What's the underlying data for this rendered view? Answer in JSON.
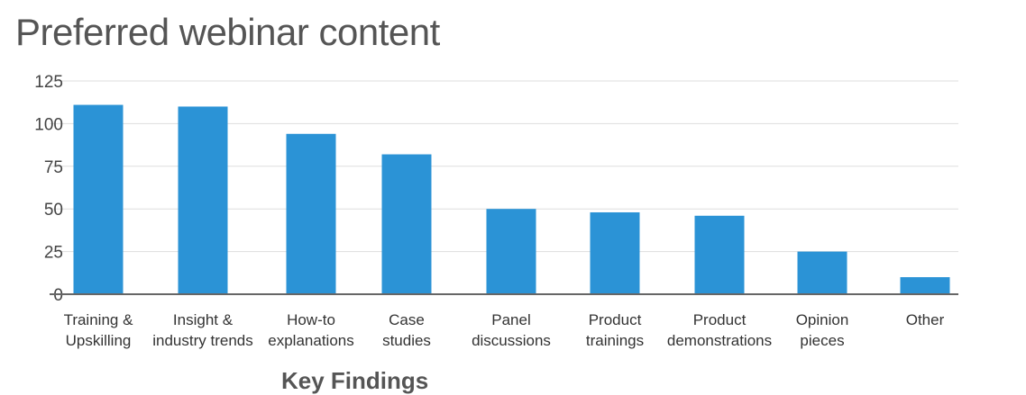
{
  "chart_data": {
    "type": "bar",
    "title": "Preferred webinar content",
    "categories": [
      [
        "Training &",
        "Upskilling"
      ],
      [
        "Insight &",
        "industry trends"
      ],
      [
        "How-to",
        "explanations"
      ],
      [
        "Case",
        "studies"
      ],
      [
        "Panel",
        "discussions"
      ],
      [
        "Product",
        "trainings"
      ],
      [
        "Product",
        "demonstrations"
      ],
      [
        "Opinion",
        "pieces"
      ],
      [
        "Other"
      ]
    ],
    "values": [
      111,
      110,
      94,
      82,
      50,
      48,
      46,
      25,
      10
    ],
    "ylim": [
      0,
      125
    ],
    "yticks": [
      0,
      25,
      50,
      75,
      100,
      125
    ],
    "xlabel": "",
    "ylabel": "",
    "grid": true,
    "colors": {
      "bar": "#2b93d6",
      "grid": "#dddddd",
      "axis": "#666666"
    }
  },
  "footer": {
    "cutoff_heading": "Key Findings"
  }
}
